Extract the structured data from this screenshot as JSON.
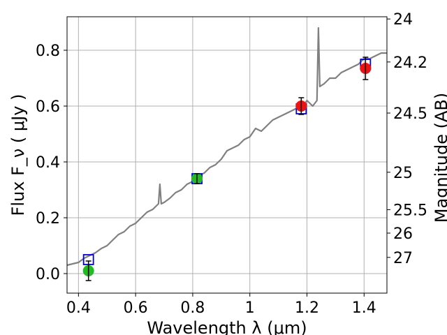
{
  "chart_data": {
    "type": "line",
    "xlabel": "Wavelength  λ (μm)",
    "ylabel": "Flux  F_ν  ( μJy )",
    "ylabel_right": "Magnitude (AB)",
    "xlim": [
      0.36,
      1.48
    ],
    "ylim": [
      -0.07,
      0.92
    ],
    "grid": true,
    "x_ticks": [
      0.4,
      0.6,
      0.8,
      1.0,
      1.2,
      1.4
    ],
    "x_tick_labels": [
      "0.4",
      "0.6",
      "0.8",
      "1",
      "1.2",
      "1.4"
    ],
    "y_ticks": [
      0.0,
      0.2,
      0.4,
      0.6,
      0.8
    ],
    "y_tick_labels": [
      "0.0",
      "0.2",
      "0.4",
      "0.6",
      "0.8"
    ],
    "right_ticks": [
      {
        "label": "24",
        "flux": 0.912
      },
      {
        "label": "24.2",
        "flux": 0.758
      },
      {
        "label": "24.5",
        "flux": 0.575
      },
      {
        "label": "25",
        "flux": 0.363
      },
      {
        "label": "25.5",
        "flux": 0.229
      },
      {
        "label": "26",
        "flux": 0.145
      },
      {
        "label": "27",
        "flux": 0.058
      }
    ],
    "series": [
      {
        "type": "line",
        "color": "#808080",
        "x": [
          0.36,
          0.38,
          0.4,
          0.42,
          0.44,
          0.46,
          0.48,
          0.5,
          0.52,
          0.54,
          0.56,
          0.58,
          0.6,
          0.62,
          0.64,
          0.66,
          0.68,
          0.685,
          0.69,
          0.7,
          0.72,
          0.74,
          0.76,
          0.78,
          0.8,
          0.82,
          0.84,
          0.86,
          0.88,
          0.9,
          0.92,
          0.94,
          0.96,
          0.98,
          1.0,
          1.02,
          1.04,
          1.06,
          1.08,
          1.1,
          1.12,
          1.14,
          1.16,
          1.18,
          1.2,
          1.22,
          1.235,
          1.24,
          1.245,
          1.26,
          1.28,
          1.3,
          1.32,
          1.34,
          1.36,
          1.38,
          1.4,
          1.42,
          1.44,
          1.46,
          1.48
        ],
        "y": [
          0.03,
          0.035,
          0.04,
          0.055,
          0.065,
          0.075,
          0.09,
          0.1,
          0.12,
          0.14,
          0.15,
          0.17,
          0.18,
          0.2,
          0.22,
          0.23,
          0.25,
          0.32,
          0.25,
          0.255,
          0.27,
          0.29,
          0.3,
          0.32,
          0.33,
          0.35,
          0.36,
          0.38,
          0.39,
          0.41,
          0.44,
          0.45,
          0.46,
          0.48,
          0.49,
          0.52,
          0.51,
          0.53,
          0.55,
          0.56,
          0.57,
          0.58,
          0.59,
          0.59,
          0.62,
          0.6,
          0.62,
          0.88,
          0.67,
          0.68,
          0.7,
          0.7,
          0.72,
          0.73,
          0.74,
          0.75,
          0.77,
          0.77,
          0.78,
          0.79,
          0.79
        ]
      },
      {
        "type": "scatter",
        "marker": "square",
        "color": "#0000dd",
        "x": [
          0.435,
          0.815,
          1.18,
          1.405
        ],
        "y": [
          0.05,
          0.34,
          0.59,
          0.75
        ]
      },
      {
        "type": "scatter",
        "marker": "circle",
        "x": [
          0.435,
          0.815,
          1.18,
          1.405
        ],
        "y": [
          0.01,
          0.34,
          0.6,
          0.735
        ],
        "yerr": [
          0.035,
          0.018,
          0.03,
          0.04
        ],
        "colors": [
          "#22bb22",
          "#22bb22",
          "#ee1111",
          "#ee1111"
        ]
      }
    ]
  }
}
